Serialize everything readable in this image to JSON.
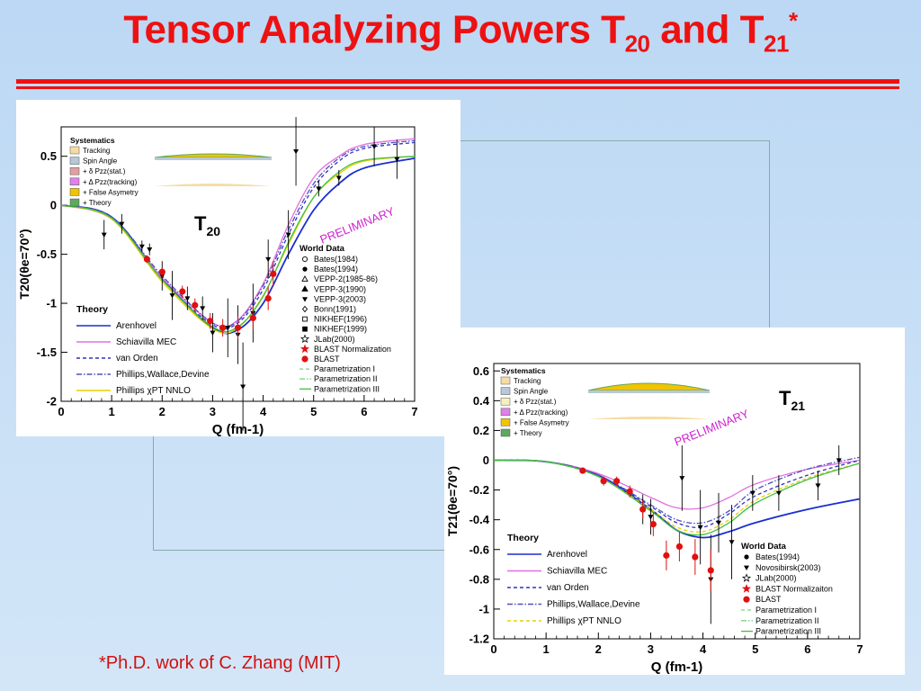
{
  "slide": {
    "title_main": "Tensor Analyzing Powers T",
    "title_sub1": "20",
    "title_and": " and T",
    "title_sub2": "21",
    "title_sup": "*",
    "footnote": "*Ph.D. work of C. Zhang (MIT)",
    "accent_color": "#ee1111"
  },
  "chart_data": [
    {
      "type": "scatter",
      "id": "T20",
      "label": "T20",
      "xlabel": "Q (fm-1)",
      "ylabel": "T20(θe=70°)",
      "xlim": [
        0,
        7
      ],
      "ylim": [
        -2,
        0.8
      ],
      "xticks": [
        0,
        1,
        2,
        3,
        4,
        5,
        6,
        7
      ],
      "yticks": [
        -2,
        -1.5,
        -1,
        -0.5,
        0,
        0.5
      ],
      "annotation": "PRELIMINARY",
      "systematics_title": "Systematics",
      "systematics": [
        {
          "name": "Tracking",
          "color": "#f6dca4"
        },
        {
          "name": "Spin Angle",
          "color": "#b8c8d8"
        },
        {
          "name": "+ δ Pzz(stat.)",
          "color": "#e0a0a0"
        },
        {
          "name": "+ Δ Pzz(tracking)",
          "color": "#e080e8"
        },
        {
          "name": "+ False Asymetry",
          "color": "#f0c400"
        },
        {
          "name": "+ Theory",
          "color": "#60a860"
        }
      ],
      "theory_title": "Theory",
      "theory": [
        {
          "name": "Arenhovel",
          "color": "#1a2ed0",
          "style": "solid"
        },
        {
          "name": "Schiavilla MEC",
          "color": "#e070e0",
          "style": "solid"
        },
        {
          "name": "van Orden",
          "color": "#3030c0",
          "style": "dash"
        },
        {
          "name": "Phillips,Wallace,Devine",
          "color": "#5050c0",
          "style": "dashdot"
        },
        {
          "name": "Phillips χPT NNLO",
          "color": "#e8d000",
          "style": "solid"
        }
      ],
      "world_title": "World Data",
      "world": [
        {
          "name": "Bates(1984)",
          "marker": "circle-open"
        },
        {
          "name": "Bates(1994)",
          "marker": "circle"
        },
        {
          "name": "VEPP-2(1985-86)",
          "marker": "triangle-open"
        },
        {
          "name": "VEPP-3(1990)",
          "marker": "triangle"
        },
        {
          "name": "VEPP-3(2003)",
          "marker": "triangle-down"
        },
        {
          "name": "Bonn(1991)",
          "marker": "diamond"
        },
        {
          "name": "NIKHEF(1996)",
          "marker": "square-open"
        },
        {
          "name": "NIKHEF(1999)",
          "marker": "square"
        },
        {
          "name": "JLab(2000)",
          "marker": "star-open"
        },
        {
          "name": "BLAST Normalization",
          "marker": "star-red"
        },
        {
          "name": "BLAST",
          "marker": "circle-red"
        },
        {
          "name": "Parametrization I",
          "color": "#80d080",
          "style": "dash"
        },
        {
          "name": "Parametrization II",
          "color": "#80d080",
          "style": "dashdot"
        },
        {
          "name": "Parametrization III",
          "color": "#40c040",
          "style": "solid"
        }
      ],
      "curves": {
        "Arenhovel": [
          [
            0,
            0
          ],
          [
            1,
            -0.12
          ],
          [
            2,
            -0.75
          ],
          [
            3,
            -1.25
          ],
          [
            3.5,
            -1.27
          ],
          [
            4,
            -1.0
          ],
          [
            4.5,
            -0.5
          ],
          [
            5,
            -0.05
          ],
          [
            5.5,
            0.22
          ],
          [
            6,
            0.38
          ],
          [
            7,
            0.48
          ]
        ],
        "Schiavilla MEC": [
          [
            0,
            0
          ],
          [
            1,
            -0.14
          ],
          [
            2,
            -0.74
          ],
          [
            3,
            -1.2
          ],
          [
            3.5,
            -1.17
          ],
          [
            4,
            -0.8
          ],
          [
            4.5,
            -0.2
          ],
          [
            5,
            0.28
          ],
          [
            5.5,
            0.5
          ],
          [
            6,
            0.62
          ],
          [
            7,
            0.68
          ]
        ],
        "van Orden": [
          [
            0,
            0
          ],
          [
            1,
            -0.13
          ],
          [
            2,
            -0.76
          ],
          [
            3,
            -1.22
          ],
          [
            3.5,
            -1.2
          ],
          [
            4,
            -0.86
          ],
          [
            4.5,
            -0.3
          ],
          [
            5,
            0.18
          ],
          [
            5.5,
            0.45
          ],
          [
            6,
            0.58
          ],
          [
            7,
            0.64
          ]
        ],
        "Phillips,Wallace,Devine": [
          [
            0,
            0
          ],
          [
            1,
            -0.12
          ],
          [
            2,
            -0.72
          ],
          [
            3,
            -1.2
          ],
          [
            3.5,
            -1.18
          ],
          [
            4,
            -0.82
          ],
          [
            4.5,
            -0.25
          ],
          [
            5,
            0.22
          ],
          [
            5.5,
            0.48
          ],
          [
            6,
            0.6
          ],
          [
            7,
            0.66
          ]
        ],
        "Phillips χPT NNLO": [
          [
            0,
            0
          ],
          [
            1,
            -0.14
          ],
          [
            2,
            -0.78
          ],
          [
            3,
            -1.26
          ],
          [
            3.5,
            -1.25
          ],
          [
            4,
            -0.92
          ],
          [
            4.5,
            -0.4
          ],
          [
            5,
            0.08
          ],
          [
            5.5,
            0.32
          ],
          [
            6,
            0.45
          ],
          [
            7,
            0.5
          ]
        ],
        "Parametrization III": [
          [
            0,
            0
          ],
          [
            1,
            -0.13
          ],
          [
            2,
            -0.76
          ],
          [
            3,
            -1.24
          ],
          [
            3.5,
            -1.24
          ],
          [
            4,
            -0.93
          ],
          [
            4.5,
            -0.38
          ],
          [
            5,
            0.08
          ],
          [
            5.5,
            0.34
          ],
          [
            6,
            0.46
          ],
          [
            7,
            0.5
          ]
        ]
      },
      "points_world": [
        {
          "x": 0.85,
          "y": -0.3,
          "err": 0.15
        },
        {
          "x": 1.2,
          "y": -0.19,
          "err": 0.1
        },
        {
          "x": 1.6,
          "y": -0.42,
          "err": 0.06
        },
        {
          "x": 1.75,
          "y": -0.45,
          "err": 0.06
        },
        {
          "x": 2.0,
          "y": -0.72,
          "err": 0.15
        },
        {
          "x": 2.2,
          "y": -0.92,
          "err": 0.25
        },
        {
          "x": 2.5,
          "y": -0.95,
          "err": 0.12
        },
        {
          "x": 2.8,
          "y": -1.05,
          "err": 0.12
        },
        {
          "x": 3.0,
          "y": -1.3,
          "err": 0.2
        },
        {
          "x": 3.3,
          "y": -1.25,
          "err": 0.3
        },
        {
          "x": 3.5,
          "y": -1.32,
          "err": 0.3
        },
        {
          "x": 3.6,
          "y": -1.85,
          "err": 0.45
        },
        {
          "x": 3.8,
          "y": -1.1,
          "err": 0.3
        },
        {
          "x": 4.1,
          "y": -0.55,
          "err": 0.2
        },
        {
          "x": 4.5,
          "y": -0.3,
          "err": 0.25
        },
        {
          "x": 4.65,
          "y": 0.55,
          "err": 0.35
        },
        {
          "x": 5.1,
          "y": 0.17,
          "err": 0.08
        },
        {
          "x": 5.5,
          "y": 0.28,
          "err": 0.08
        },
        {
          "x": 6.2,
          "y": 0.6,
          "err": 0.2
        },
        {
          "x": 6.65,
          "y": 0.47,
          "err": 0.2
        }
      ],
      "points_blast": [
        {
          "x": 1.7,
          "y": -0.55,
          "err": 0.04
        },
        {
          "x": 2.0,
          "y": -0.68,
          "err": 0.05
        },
        {
          "x": 2.4,
          "y": -0.88,
          "err": 0.06
        },
        {
          "x": 2.65,
          "y": -1.02,
          "err": 0.07
        },
        {
          "x": 2.95,
          "y": -1.18,
          "err": 0.08
        },
        {
          "x": 3.2,
          "y": -1.25,
          "err": 0.09
        },
        {
          "x": 3.5,
          "y": -1.25,
          "err": 0.11
        },
        {
          "x": 3.8,
          "y": -1.15,
          "err": 0.12
        },
        {
          "x": 4.1,
          "y": -0.95,
          "err": 0.12
        },
        {
          "x": 4.2,
          "y": -0.7,
          "err": 0.13
        }
      ]
    },
    {
      "type": "scatter",
      "id": "T21",
      "label": "T21",
      "xlabel": "Q (fm-1)",
      "ylabel": "T21(θe=70°)",
      "xlim": [
        0,
        7
      ],
      "ylim": [
        -1.2,
        0.65
      ],
      "xticks": [
        0,
        1,
        2,
        3,
        4,
        5,
        6,
        7
      ],
      "yticks": [
        -1.2,
        -1,
        -0.8,
        -0.6,
        -0.4,
        -0.2,
        0,
        0.2,
        0.4,
        0.6
      ],
      "annotation": "PRELIMINARY",
      "systematics_title": "Systematics",
      "systematics": [
        {
          "name": "Tracking",
          "color": "#f6dca4"
        },
        {
          "name": "Spin Angle",
          "color": "#b8c8d8"
        },
        {
          "name": "+ δ Pzz(stat.)",
          "color": "#f6f0c0"
        },
        {
          "name": "+ Δ Pzz(tracking)",
          "color": "#e080e8"
        },
        {
          "name": "+ False Asymetry",
          "color": "#f0c400"
        },
        {
          "name": "+ Theory",
          "color": "#60a860"
        }
      ],
      "theory_title": "Theory",
      "theory": [
        {
          "name": "Arenhovel",
          "color": "#1a2ed0",
          "style": "solid"
        },
        {
          "name": "Schiavilla MEC",
          "color": "#e070e0",
          "style": "solid"
        },
        {
          "name": "van Orden",
          "color": "#3030c0",
          "style": "dash"
        },
        {
          "name": "Phillips,Wallace,Devine",
          "color": "#5050c0",
          "style": "dashdot"
        },
        {
          "name": "Phillips χPT NNLO",
          "color": "#e8d000",
          "style": "dash"
        }
      ],
      "world_title": "World Data",
      "world": [
        {
          "name": "Bates(1994)",
          "marker": "circle"
        },
        {
          "name": "Novosibirsk(2003)",
          "marker": "triangle-down"
        },
        {
          "name": "JLab(2000)",
          "marker": "star-open"
        },
        {
          "name": "BLAST Normalizaiton",
          "marker": "star-red"
        },
        {
          "name": "BLAST",
          "marker": "circle-red"
        },
        {
          "name": "Parametrization I",
          "color": "#80d080",
          "style": "dash"
        },
        {
          "name": "Parametrization II",
          "color": "#80d080",
          "style": "dashdot"
        },
        {
          "name": "Parametrization III",
          "color": "#40c040",
          "style": "solid"
        }
      ],
      "curves": {
        "Arenhovel": [
          [
            0,
            0
          ],
          [
            1,
            -0.01
          ],
          [
            2,
            -0.1
          ],
          [
            3,
            -0.33
          ],
          [
            3.5,
            -0.47
          ],
          [
            4,
            -0.52
          ],
          [
            4.5,
            -0.48
          ],
          [
            5,
            -0.42
          ],
          [
            6,
            -0.33
          ],
          [
            7,
            -0.26
          ]
        ],
        "Schiavilla MEC": [
          [
            0,
            0
          ],
          [
            1,
            -0.01
          ],
          [
            2,
            -0.09
          ],
          [
            3,
            -0.25
          ],
          [
            3.5,
            -0.32
          ],
          [
            4,
            -0.32
          ],
          [
            4.5,
            -0.25
          ],
          [
            5,
            -0.16
          ],
          [
            6,
            -0.06
          ],
          [
            7,
            0.0
          ]
        ],
        "van Orden": [
          [
            0,
            0
          ],
          [
            1,
            -0.01
          ],
          [
            2,
            -0.1
          ],
          [
            3,
            -0.31
          ],
          [
            3.5,
            -0.42
          ],
          [
            4,
            -0.45
          ],
          [
            4.5,
            -0.36
          ],
          [
            5,
            -0.24
          ],
          [
            6,
            -0.1
          ],
          [
            7,
            0.0
          ]
        ],
        "Phillips,Wallace,Devine": [
          [
            0,
            0
          ],
          [
            1,
            -0.01
          ],
          [
            2,
            -0.1
          ],
          [
            3,
            -0.3
          ],
          [
            3.5,
            -0.4
          ],
          [
            4,
            -0.42
          ],
          [
            4.5,
            -0.34
          ],
          [
            5,
            -0.2
          ],
          [
            6,
            -0.06
          ],
          [
            7,
            0.02
          ]
        ],
        "Phillips χPT NNLO": [
          [
            0,
            0
          ],
          [
            1,
            -0.01
          ],
          [
            2,
            -0.11
          ],
          [
            3,
            -0.33
          ],
          [
            3.5,
            -0.45
          ],
          [
            4,
            -0.48
          ],
          [
            4.5,
            -0.4
          ],
          [
            5,
            -0.27
          ],
          [
            6,
            -0.12
          ],
          [
            7,
            -0.02
          ]
        ],
        "Parametrization III": [
          [
            0,
            0
          ],
          [
            1,
            -0.01
          ],
          [
            2,
            -0.11
          ],
          [
            3,
            -0.34
          ],
          [
            3.5,
            -0.47
          ],
          [
            4,
            -0.5
          ],
          [
            4.5,
            -0.42
          ],
          [
            5,
            -0.29
          ],
          [
            6,
            -0.13
          ],
          [
            7,
            -0.02
          ]
        ]
      },
      "points_world": [
        {
          "x": 2.85,
          "y": -0.33,
          "err": 0.1
        },
        {
          "x": 3.0,
          "y": -0.38,
          "err": 0.12
        },
        {
          "x": 3.6,
          "y": -0.12,
          "err": 0.22
        },
        {
          "x": 3.95,
          "y": -0.45,
          "err": 0.25
        },
        {
          "x": 4.15,
          "y": -0.8,
          "err": 0.3
        },
        {
          "x": 4.3,
          "y": -0.42,
          "err": 0.2
        },
        {
          "x": 4.55,
          "y": -0.55,
          "err": 0.25
        },
        {
          "x": 4.95,
          "y": -0.22,
          "err": 0.12
        },
        {
          "x": 5.45,
          "y": -0.22,
          "err": 0.12
        },
        {
          "x": 6.2,
          "y": -0.17,
          "err": 0.1
        },
        {
          "x": 6.6,
          "y": 0.0,
          "err": 0.1
        }
      ],
      "points_blast": [
        {
          "x": 1.7,
          "y": -0.07,
          "err": 0.02
        },
        {
          "x": 2.1,
          "y": -0.14,
          "err": 0.03
        },
        {
          "x": 2.35,
          "y": -0.14,
          "err": 0.03
        },
        {
          "x": 2.6,
          "y": -0.21,
          "err": 0.04
        },
        {
          "x": 2.85,
          "y": -0.33,
          "err": 0.06
        },
        {
          "x": 3.05,
          "y": -0.43,
          "err": 0.08
        },
        {
          "x": 3.3,
          "y": -0.64,
          "err": 0.1
        },
        {
          "x": 3.55,
          "y": -0.58,
          "err": 0.1
        },
        {
          "x": 3.85,
          "y": -0.65,
          "err": 0.12
        },
        {
          "x": 4.15,
          "y": -0.74,
          "err": 0.14
        }
      ]
    }
  ]
}
